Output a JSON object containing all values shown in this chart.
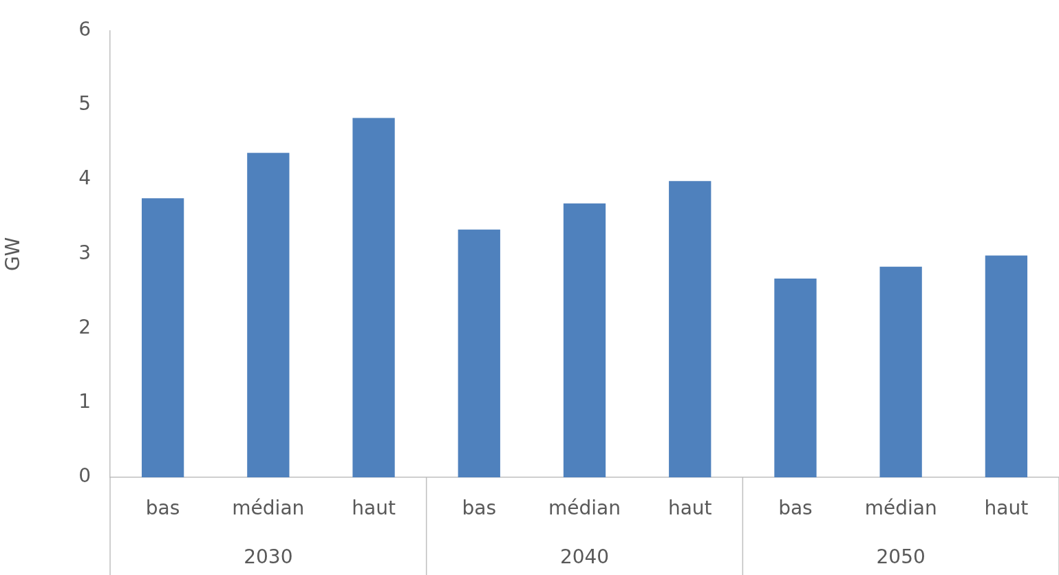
{
  "chart_data": {
    "type": "bar",
    "ylabel": "GW",
    "categories": [
      "bas",
      "médian",
      "haut",
      "bas",
      "médian",
      "haut",
      "bas",
      "médian",
      "haut"
    ],
    "values": [
      3.75,
      4.36,
      4.83,
      3.33,
      3.68,
      3.98,
      2.67,
      2.83,
      2.98
    ],
    "color": "#4f81bd",
    "ylim": [
      0,
      6
    ],
    "yticks": [
      0,
      1,
      2,
      3,
      4,
      5,
      6
    ],
    "grid": false,
    "legend": false,
    "annotations": [
      "2030",
      "2040",
      "2050"
    ]
  }
}
